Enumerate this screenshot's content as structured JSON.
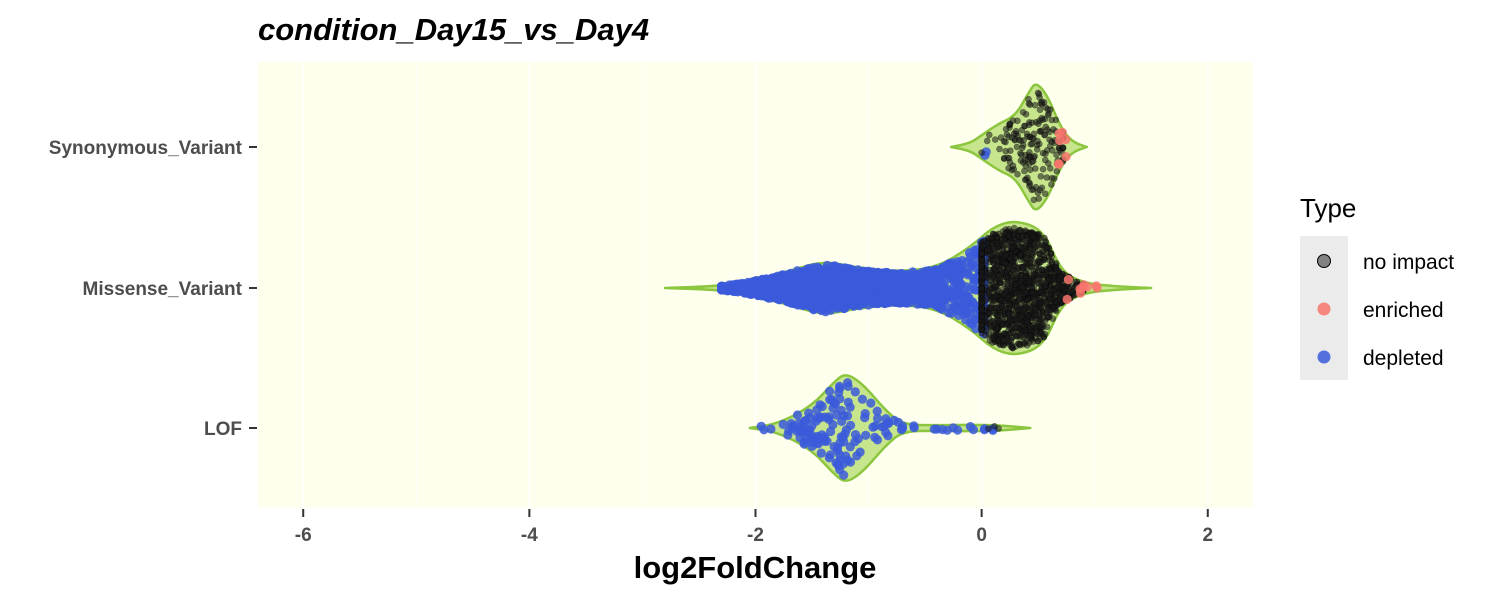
{
  "chart_data": {
    "type": "violin",
    "title": "condition_Day15_vs_Day4",
    "xlabel": "log2FoldChange",
    "ylabel": "",
    "xlim": [
      -6.4,
      2.4
    ],
    "x_ticks": [
      -6,
      -4,
      -2,
      0,
      2
    ],
    "grid": true,
    "categories": [
      "Synonymous_Variant",
      "Missense_Variant",
      "LOF"
    ],
    "legend": {
      "title": "Type",
      "placement": "right",
      "items": [
        {
          "label": "no impact",
          "color": "#1a1a1a"
        },
        {
          "label": "enriched",
          "color": "#f8766d"
        },
        {
          "label": "depleted",
          "color": "#3b5bdb"
        }
      ]
    },
    "colors": {
      "panel_background": "#ffffee",
      "violin_fill": "#c6e58c",
      "violin_outline": "#8cc63f",
      "no_impact": "#1a1a1a",
      "enriched": "#f8766d",
      "depleted": "#3b5bdb"
    },
    "violins": [
      {
        "category": "Synonymous_Variant",
        "profile": [
          [
            -0.27,
            0.0
          ],
          [
            -0.1,
            0.06
          ],
          [
            0.0,
            0.18
          ],
          [
            0.15,
            0.36
          ],
          [
            0.3,
            0.48
          ],
          [
            0.42,
            0.85
          ],
          [
            0.48,
            1.0
          ],
          [
            0.58,
            0.8
          ],
          [
            0.7,
            0.3
          ],
          [
            0.8,
            0.08
          ],
          [
            0.93,
            0.0
          ]
        ],
        "points": [
          {
            "type": "no impact",
            "n": 170,
            "range": [
              -0.05,
              0.72
            ],
            "center": 0.45,
            "spread": 0.17
          },
          {
            "type": "enriched",
            "n": 7,
            "range": [
              0.68,
              0.78
            ],
            "center": 0.73,
            "spread": 0.03
          },
          {
            "type": "depleted",
            "n": 2,
            "range": [
              -0.06,
              0.06
            ],
            "center": 0.0,
            "spread": 0.04
          }
        ]
      },
      {
        "category": "Missense_Variant",
        "profile": [
          [
            -2.8,
            0.0
          ],
          [
            -2.3,
            0.03
          ],
          [
            -2.0,
            0.12
          ],
          [
            -1.7,
            0.25
          ],
          [
            -1.4,
            0.4
          ],
          [
            -1.1,
            0.3
          ],
          [
            -0.75,
            0.24
          ],
          [
            -0.4,
            0.3
          ],
          [
            -0.1,
            0.6
          ],
          [
            0.1,
            0.9
          ],
          [
            0.3,
            1.0
          ],
          [
            0.55,
            0.85
          ],
          [
            0.7,
            0.25
          ],
          [
            0.9,
            0.07
          ],
          [
            1.2,
            0.02
          ],
          [
            1.5,
            0.0
          ]
        ],
        "points": [
          {
            "type": "no impact",
            "n": 1400,
            "range": [
              0.0,
              0.9
            ],
            "center": 0.33,
            "spread": 0.24
          },
          {
            "type": "depleted",
            "n": 1600,
            "range": [
              -2.3,
              0.02
            ],
            "center": -1.1,
            "spread": 0.7
          },
          {
            "type": "enriched",
            "n": 9,
            "range": [
              0.75,
              1.07
            ],
            "center": 0.9,
            "spread": 0.09
          }
        ]
      },
      {
        "category": "LOF",
        "profile": [
          [
            -2.05,
            0.0
          ],
          [
            -1.8,
            0.08
          ],
          [
            -1.5,
            0.4
          ],
          [
            -1.3,
            0.85
          ],
          [
            -1.2,
            1.0
          ],
          [
            -1.05,
            0.8
          ],
          [
            -0.85,
            0.32
          ],
          [
            -0.7,
            0.06
          ],
          [
            -0.4,
            0.05
          ],
          [
            -0.1,
            0.06
          ],
          [
            0.15,
            0.05
          ],
          [
            0.43,
            0.0
          ]
        ],
        "points": [
          {
            "type": "depleted",
            "n": 130,
            "range": [
              -1.95,
              -0.7
            ],
            "center": -1.25,
            "spread": 0.28
          },
          {
            "type": "depleted",
            "n": 14,
            "range": [
              -0.6,
              0.1
            ],
            "center": -0.25,
            "spread": 0.22
          },
          {
            "type": "no impact",
            "n": 3,
            "range": [
              0.05,
              0.15
            ],
            "center": 0.1,
            "spread": 0.04
          }
        ]
      }
    ]
  }
}
